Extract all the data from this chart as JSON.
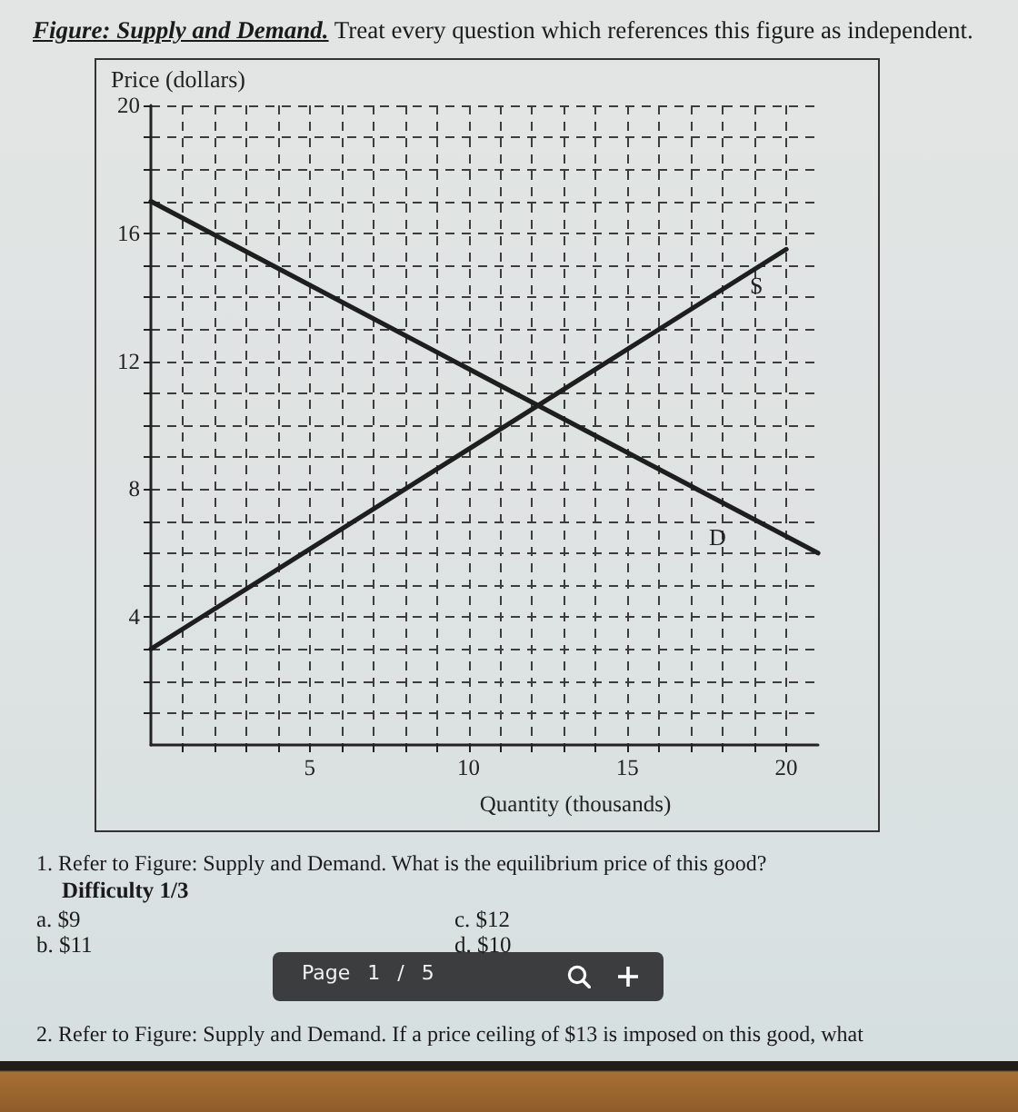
{
  "chart_data": {
    "type": "line",
    "title": "Figure: Supply and Demand.",
    "subtitle": "Treat every question which references this figure as independent.",
    "xlabel": "Quantity (thousands)",
    "ylabel": "Price (dollars)",
    "series": [
      {
        "name": "S",
        "color": "#1e1e1e",
        "x": [
          0,
          20
        ],
        "values": [
          3,
          15.5
        ]
      },
      {
        "name": "D",
        "color": "#1e1e1e",
        "x": [
          0,
          21
        ],
        "values": [
          17,
          6
        ]
      }
    ],
    "xlim": [
      0,
      21
    ],
    "xticks": [
      {
        "value": 1,
        "label": null
      },
      {
        "value": 2,
        "label": null
      },
      {
        "value": 3,
        "label": null
      },
      {
        "value": 4,
        "label": null
      },
      5,
      {
        "value": 6,
        "label": null
      },
      {
        "value": 7,
        "label": null
      },
      {
        "value": 8,
        "label": null
      },
      {
        "value": 9,
        "label": null
      },
      10,
      {
        "value": 11,
        "label": null
      },
      {
        "value": 12,
        "label": null
      },
      {
        "value": 13,
        "label": null
      },
      {
        "value": 14,
        "label": null
      },
      15,
      {
        "value": 16,
        "label": null
      },
      {
        "value": 17,
        "label": null
      },
      {
        "value": 18,
        "label": null
      },
      {
        "value": 19,
        "label": null
      },
      20
    ],
    "ylim": [
      0,
      20
    ],
    "yticks": [
      {
        "value": 1,
        "label": null
      },
      {
        "value": 2,
        "label": null
      },
      {
        "value": 3,
        "label": null
      },
      4,
      {
        "value": 5,
        "label": null
      },
      {
        "value": 6,
        "label": null
      },
      {
        "value": 7,
        "label": null
      },
      8,
      {
        "value": 9,
        "label": null
      },
      {
        "value": 10,
        "label": null
      },
      {
        "value": 11,
        "label": null
      },
      12,
      {
        "value": 13,
        "label": null
      },
      {
        "value": 14,
        "label": null
      },
      {
        "value": 15,
        "label": null
      },
      16,
      {
        "value": 17,
        "label": null
      },
      {
        "value": 18,
        "label": null
      },
      {
        "value": 19,
        "label": null
      },
      20
    ],
    "grid": true,
    "marker": "none",
    "line_style": "solid",
    "annotations": [
      "1. Refer to Figure: Supply and Demand. What is the equilibrium price of this good?",
      "Difficulty 1/3",
      "a. $9",
      "b. $11",
      "c. $12",
      "d. $10",
      "Page 1 / 5",
      "2. Refer to Figure: Supply and Demand. If a price ceiling of $13 is imposed on this good, what"
    ]
  }
}
